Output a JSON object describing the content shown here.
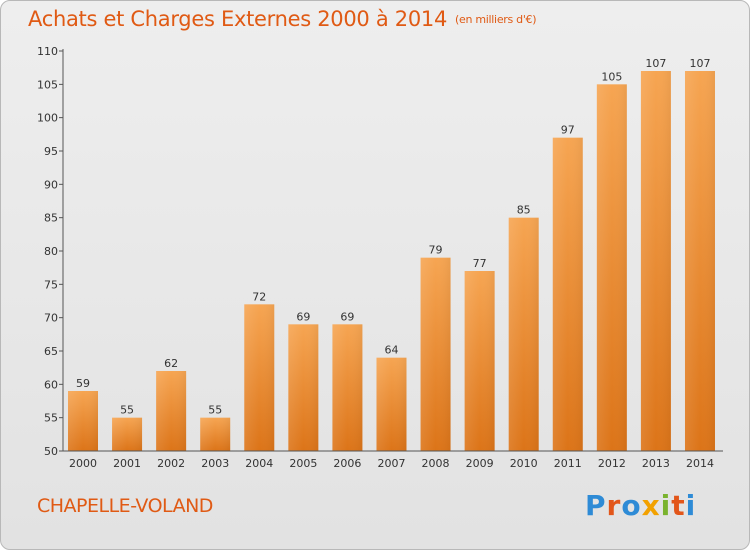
{
  "title": "Achats et Charges Externes 2000 à 2014",
  "subtitle": "(en milliers d'€)",
  "commune": "CHAPELLE-VOLAND",
  "logo": {
    "text": "Proxiti",
    "colors": [
      "#2e8bd6",
      "#e2561a",
      "#2e8bd6",
      "#f2a100",
      "#7ab32e",
      "#e2561a",
      "#2e8bd6"
    ]
  },
  "colors": {
    "bar_top": "#f6a552",
    "bar_bottom": "#dc7418",
    "accent": "#e05a14"
  },
  "chart_data": {
    "type": "bar",
    "title": "Achats et Charges Externes 2000 à 2014",
    "subtitle": "(en milliers d'€)",
    "categories": [
      "2000",
      "2001",
      "2002",
      "2003",
      "2004",
      "2005",
      "2006",
      "2007",
      "2008",
      "2009",
      "2010",
      "2011",
      "2012",
      "2013",
      "2014"
    ],
    "values": [
      59,
      55,
      62,
      55,
      72,
      69,
      69,
      64,
      79,
      77,
      85,
      97,
      105,
      107,
      107
    ],
    "ylim": [
      50,
      110
    ],
    "yticks": [
      50,
      55,
      60,
      65,
      70,
      75,
      80,
      85,
      90,
      95,
      100,
      105,
      110
    ],
    "xlabel": "",
    "ylabel": "",
    "grid": false,
    "data_labels": true
  }
}
